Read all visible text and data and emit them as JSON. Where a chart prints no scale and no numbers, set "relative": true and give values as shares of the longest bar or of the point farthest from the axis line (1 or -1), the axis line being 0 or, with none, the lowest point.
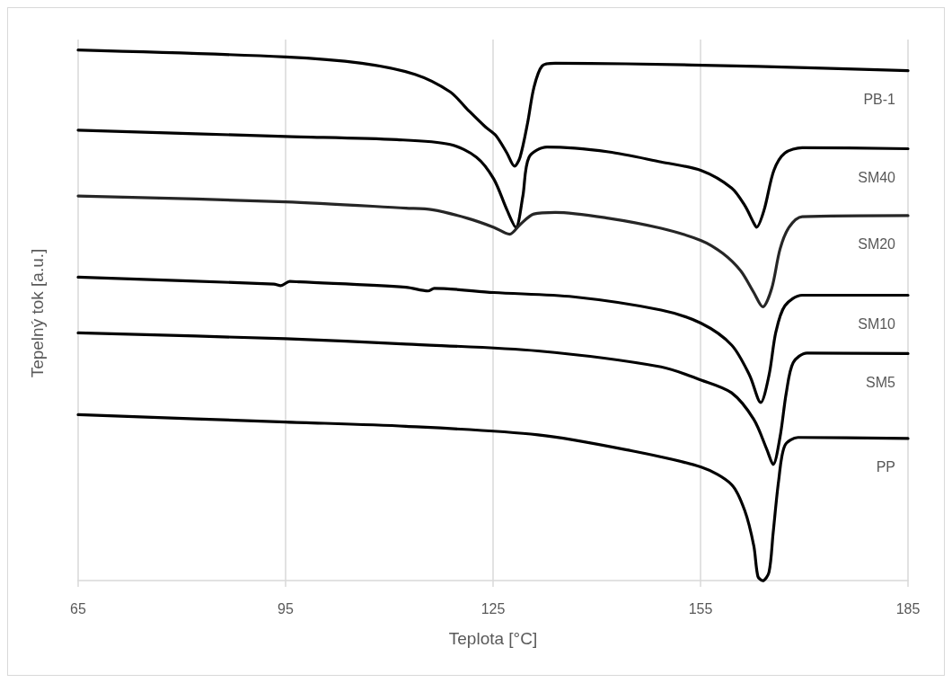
{
  "chart_data": {
    "type": "line",
    "relative": true,
    "xlabel": "Teplota [°C]",
    "ylabel": "Tepelný tok [a.u.]",
    "xlim": [
      65,
      185
    ],
    "xticks": [
      65,
      95,
      125,
      155,
      185
    ],
    "grid": "x",
    "legend": false,
    "marker": "none",
    "line_style": "solid",
    "series": [
      {
        "name": "PB-1",
        "color": "#000000",
        "x": [
          65,
          95,
          106.0,
          113.7,
          118.8,
          121.3,
          123.9,
          125.4,
          127.0,
          128.1,
          128.9,
          130.0,
          130.9,
          132.1,
          134.0,
          144.2,
          163.3,
          185
        ],
        "values": [
          1.0,
          0.987,
          0.975,
          0.954,
          0.921,
          0.888,
          0.855,
          0.839,
          0.806,
          0.781,
          0.798,
          0.863,
          0.929,
          0.97,
          0.975,
          0.974,
          0.969,
          0.961
        ]
      },
      {
        "name": "SM40",
        "color": "#000000",
        "x": [
          65,
          95,
          111.1,
          118.8,
          122.6,
          125.1,
          127.0,
          128.3,
          129.3,
          130.2,
          132.8,
          141.7,
          149.3,
          155.1,
          159.5,
          161.4,
          162.7,
          163.1,
          164.2,
          165.6,
          167.2,
          169.7,
          185
        ],
        "values": [
          0.849,
          0.837,
          0.831,
          0.822,
          0.798,
          0.757,
          0.699,
          0.666,
          0.724,
          0.798,
          0.817,
          0.808,
          0.789,
          0.773,
          0.74,
          0.707,
          0.674,
          0.666,
          0.699,
          0.773,
          0.806,
          0.816,
          0.814
        ]
      },
      {
        "name": "SM20",
        "color": "#262626",
        "x": [
          65,
          95,
          112.4,
          116.2,
          121.3,
          125.1,
          127.4,
          128.9,
          130.9,
          134.0,
          141.7,
          149.3,
          155.1,
          158.2,
          160.8,
          162.7,
          164.0,
          165.3,
          166.5,
          167.8,
          169.7,
          185
        ],
        "values": [
          0.725,
          0.714,
          0.702,
          0.699,
          0.683,
          0.666,
          0.653,
          0.671,
          0.691,
          0.694,
          0.683,
          0.664,
          0.641,
          0.617,
          0.584,
          0.543,
          0.516,
          0.551,
          0.625,
          0.666,
          0.686,
          0.688
        ]
      },
      {
        "name": "SM10",
        "color": "#000000",
        "x": [
          65,
          93.3,
          94.3,
          95.6,
          97.1,
          112.4,
          115.6,
          116.5,
          125.1,
          136.6,
          149.3,
          155.1,
          159.5,
          162.1,
          163.7,
          164.9,
          165.9,
          167.2,
          169.7,
          185
        ],
        "values": [
          0.572,
          0.559,
          0.556,
          0.564,
          0.563,
          0.553,
          0.546,
          0.551,
          0.543,
          0.535,
          0.51,
          0.485,
          0.444,
          0.387,
          0.336,
          0.387,
          0.469,
          0.518,
          0.538,
          0.538
        ]
      },
      {
        "name": "SM5",
        "color": "#000000",
        "x": [
          65,
          95,
          112.4,
          131.5,
          149.3,
          155.1,
          159.5,
          162.7,
          164.6,
          165.5,
          166.5,
          167.4,
          168.4,
          170.4,
          185
        ],
        "values": [
          0.467,
          0.456,
          0.446,
          0.433,
          0.403,
          0.378,
          0.354,
          0.304,
          0.247,
          0.219,
          0.271,
          0.354,
          0.411,
          0.429,
          0.428
        ]
      },
      {
        "name": "PP",
        "color": "#000000",
        "x": [
          65,
          95,
          112.4,
          131.5,
          144.2,
          155.1,
          159.5,
          161.4,
          162.7,
          163.3,
          164.0,
          164.9,
          165.5,
          166.3,
          167.2,
          169.1,
          185
        ],
        "values": [
          0.313,
          0.299,
          0.291,
          0.275,
          0.247,
          0.214,
          0.181,
          0.132,
          0.066,
          0.008,
          0,
          0.016,
          0.09,
          0.189,
          0.255,
          0.27,
          0.268
        ]
      }
    ]
  }
}
